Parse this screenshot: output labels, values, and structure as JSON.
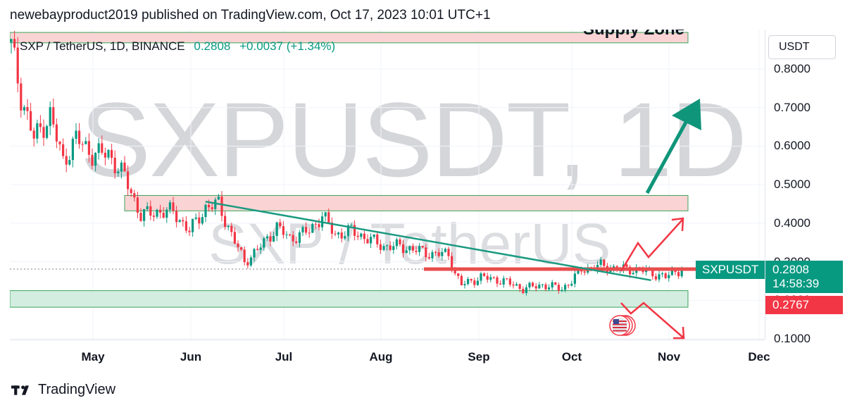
{
  "header": {
    "publish_line": "newebayproduct2019 published on TradingView.com, Oct 17, 2023 10:01 UTC+1"
  },
  "legend": {
    "symbol": "SXP / TetherUS, 1D, BINANCE",
    "price": "0.2808",
    "change": "+0.0037 (+1.34%)"
  },
  "watermark": {
    "big": "SXPUSDT, 1D",
    "small": "SXP / TetherUS"
  },
  "currency_button": "USDT",
  "price_tags": {
    "symbol": "SXPUSDT",
    "last": "0.2808",
    "countdown": "14:58:39",
    "low": "0.2767"
  },
  "zones": {
    "supply_label": "Supply Zone"
  },
  "footer": {
    "brand": "TradingView"
  },
  "colors": {
    "up": "#089981",
    "down": "#f23645",
    "trend": "#1a9a80",
    "supply": "#fad4d4",
    "demand": "#d3ede0",
    "arrow": "#0f957a"
  },
  "chart_data": {
    "type": "candlestick",
    "title": "SXP / TetherUS, 1D, BINANCE",
    "xlabel": "",
    "ylabel": "",
    "ylim": [
      0.09,
      0.88
    ],
    "y_ticks": [
      "0.1000",
      "0.2000",
      "0.3000",
      "0.4000",
      "0.5000",
      "0.6000",
      "0.7000",
      "0.8000"
    ],
    "x_ticks": [
      "May",
      "Jun",
      "Jul",
      "Aug",
      "Sep",
      "Oct",
      "Nov",
      "Dec"
    ],
    "grid": true,
    "close_path": [
      {
        "day": 0,
        "close": 0.86
      },
      {
        "day": 3,
        "close": 0.73
      },
      {
        "day": 7,
        "close": 0.62
      },
      {
        "day": 12,
        "close": 0.68
      },
      {
        "day": 16,
        "close": 0.56
      },
      {
        "day": 20,
        "close": 0.62
      },
      {
        "day": 25,
        "close": 0.58
      },
      {
        "day": 30,
        "close": 0.58
      },
      {
        "day": 35,
        "close": 0.52
      },
      {
        "day": 40,
        "close": 0.42
      },
      {
        "day": 45,
        "close": 0.43
      },
      {
        "day": 50,
        "close": 0.43
      },
      {
        "day": 55,
        "close": 0.38
      },
      {
        "day": 60,
        "close": 0.44
      },
      {
        "day": 64,
        "close": 0.45
      },
      {
        "day": 68,
        "close": 0.37
      },
      {
        "day": 72,
        "close": 0.3
      },
      {
        "day": 76,
        "close": 0.33
      },
      {
        "day": 82,
        "close": 0.39
      },
      {
        "day": 86,
        "close": 0.36
      },
      {
        "day": 92,
        "close": 0.38
      },
      {
        "day": 96,
        "close": 0.42
      },
      {
        "day": 100,
        "close": 0.37
      },
      {
        "day": 105,
        "close": 0.38
      },
      {
        "day": 110,
        "close": 0.36
      },
      {
        "day": 115,
        "close": 0.34
      },
      {
        "day": 120,
        "close": 0.34
      },
      {
        "day": 125,
        "close": 0.33
      },
      {
        "day": 130,
        "close": 0.32
      },
      {
        "day": 135,
        "close": 0.32
      },
      {
        "day": 137,
        "close": 0.27
      },
      {
        "day": 139,
        "close": 0.24
      },
      {
        "day": 145,
        "close": 0.26
      },
      {
        "day": 152,
        "close": 0.25
      },
      {
        "day": 158,
        "close": 0.23
      },
      {
        "day": 164,
        "close": 0.24
      },
      {
        "day": 170,
        "close": 0.23
      },
      {
        "day": 173,
        "close": 0.25
      },
      {
        "day": 176,
        "close": 0.28
      },
      {
        "day": 182,
        "close": 0.29
      },
      {
        "day": 188,
        "close": 0.28
      },
      {
        "day": 194,
        "close": 0.28
      },
      {
        "day": 198,
        "close": 0.27
      },
      {
        "day": 202,
        "close": 0.26
      },
      {
        "day": 205,
        "close": 0.275
      },
      {
        "day": 207,
        "close": 0.2808
      }
    ],
    "zones": [
      {
        "kind": "supply",
        "from": 0.868,
        "to": 0.895,
        "label": "Supply Zone"
      },
      {
        "kind": "supply",
        "from": 0.432,
        "to": 0.472
      },
      {
        "kind": "demand",
        "from": 0.182,
        "to": 0.225
      }
    ],
    "trendline": {
      "from": {
        "day": 63,
        "price": 0.456
      },
      "to": {
        "day": 211,
        "price": 0.252
      }
    },
    "horizontal_level": 0.2808
  }
}
